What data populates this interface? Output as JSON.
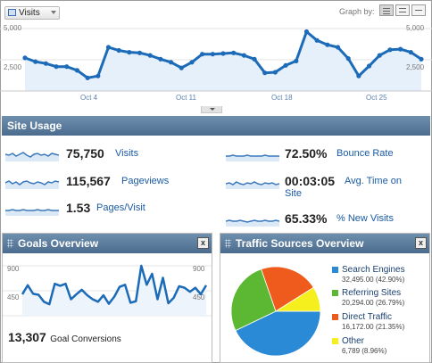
{
  "toolbar": {
    "metric_label": "Visits",
    "graph_by_label": "Graph by:",
    "graph_by_options": [
      "day",
      "week",
      "month"
    ],
    "graph_by_selected": "day"
  },
  "chart_data": [
    {
      "type": "area",
      "title": "",
      "y_left_ticks": [
        "5,000",
        "2,500"
      ],
      "y_right_ticks": [
        "5,000",
        "2,500"
      ],
      "x_tick_labels": [
        "Oct 4",
        "Oct 11",
        "Oct 18",
        "Oct 25"
      ],
      "ylim": [
        0,
        5000
      ],
      "series": [
        {
          "values": [
            2650,
            2350,
            2200,
            1950,
            1950,
            1650,
            1050,
            1200,
            3500,
            3250,
            3100,
            3050,
            2850,
            2550,
            2300,
            1850,
            2300,
            2950,
            2950,
            3000,
            3050,
            2850,
            2550,
            1450,
            1500,
            2050,
            2400,
            4750,
            4050,
            3700,
            3500,
            2600,
            1200,
            2000,
            2850,
            3300,
            3350,
            3100,
            2550
          ]
        }
      ],
      "grid": true,
      "color": "#1c6bb8"
    },
    {
      "type": "line",
      "title": "",
      "y_left_ticks": [
        "900",
        "450"
      ],
      "y_right_ticks": [
        "900",
        "450"
      ],
      "ylim": [
        0,
        1000
      ],
      "series": [
        {
          "values": [
            430,
            610,
            440,
            420,
            280,
            230,
            640,
            600,
            640,
            330,
            430,
            520,
            410,
            330,
            280,
            410,
            240,
            380,
            580,
            620,
            260,
            290,
            1000,
            620,
            840,
            330,
            760,
            250,
            360,
            590,
            560,
            480,
            560,
            430,
            610
          ]
        }
      ],
      "grid": true,
      "color": "#1c6bb8"
    },
    {
      "type": "pie",
      "title": "",
      "categories": [
        "Search Engines",
        "Referring Sites",
        "Direct Traffic",
        "Other"
      ],
      "values": [
        32495,
        20294,
        16172,
        6789
      ],
      "percents": [
        42.9,
        26.79,
        21.35,
        8.96
      ],
      "colors": [
        "#2b8ad6",
        "#5cb832",
        "#ee5b1c",
        "#f6ef1e"
      ]
    }
  ],
  "site_usage": {
    "header": "Site Usage",
    "visits_value": "75,750",
    "visits_label": "Visits",
    "pageviews_value": "115,567",
    "pageviews_label": "Pageviews",
    "pages_per_visit_value": "1.53",
    "pages_per_visit_label": "Pages/Visit",
    "bounce_rate_value": "72.50%",
    "bounce_rate_label": "Bounce Rate",
    "avg_time_value": "00:03:05",
    "avg_time_label_line1": "Avg. Time on",
    "avg_time_label_line2": "Site",
    "new_visits_value": "65.33%",
    "new_visits_label": "% New Visits"
  },
  "goals": {
    "header": "Goals Overview",
    "close_label": "x",
    "conversions_value": "13,307",
    "conversions_label": "Goal Conversions"
  },
  "traffic_sources": {
    "header": "Traffic Sources Overview",
    "close_label": "x",
    "items": [
      {
        "name": "Search Engines",
        "detail": "32,495.00 (42.90%)",
        "color": "#2b8ad6"
      },
      {
        "name": "Referring Sites",
        "detail": "20,294.00 (26.79%)",
        "color": "#5cb832"
      },
      {
        "name": "Direct Traffic",
        "detail": "16,172.00 (21.35%)",
        "color": "#ee5b1c"
      },
      {
        "name": "Other",
        "detail": "6,789 (8.96%)",
        "color": "#f6ef1e"
      }
    ]
  },
  "sparkline_color": "#3a78bd"
}
